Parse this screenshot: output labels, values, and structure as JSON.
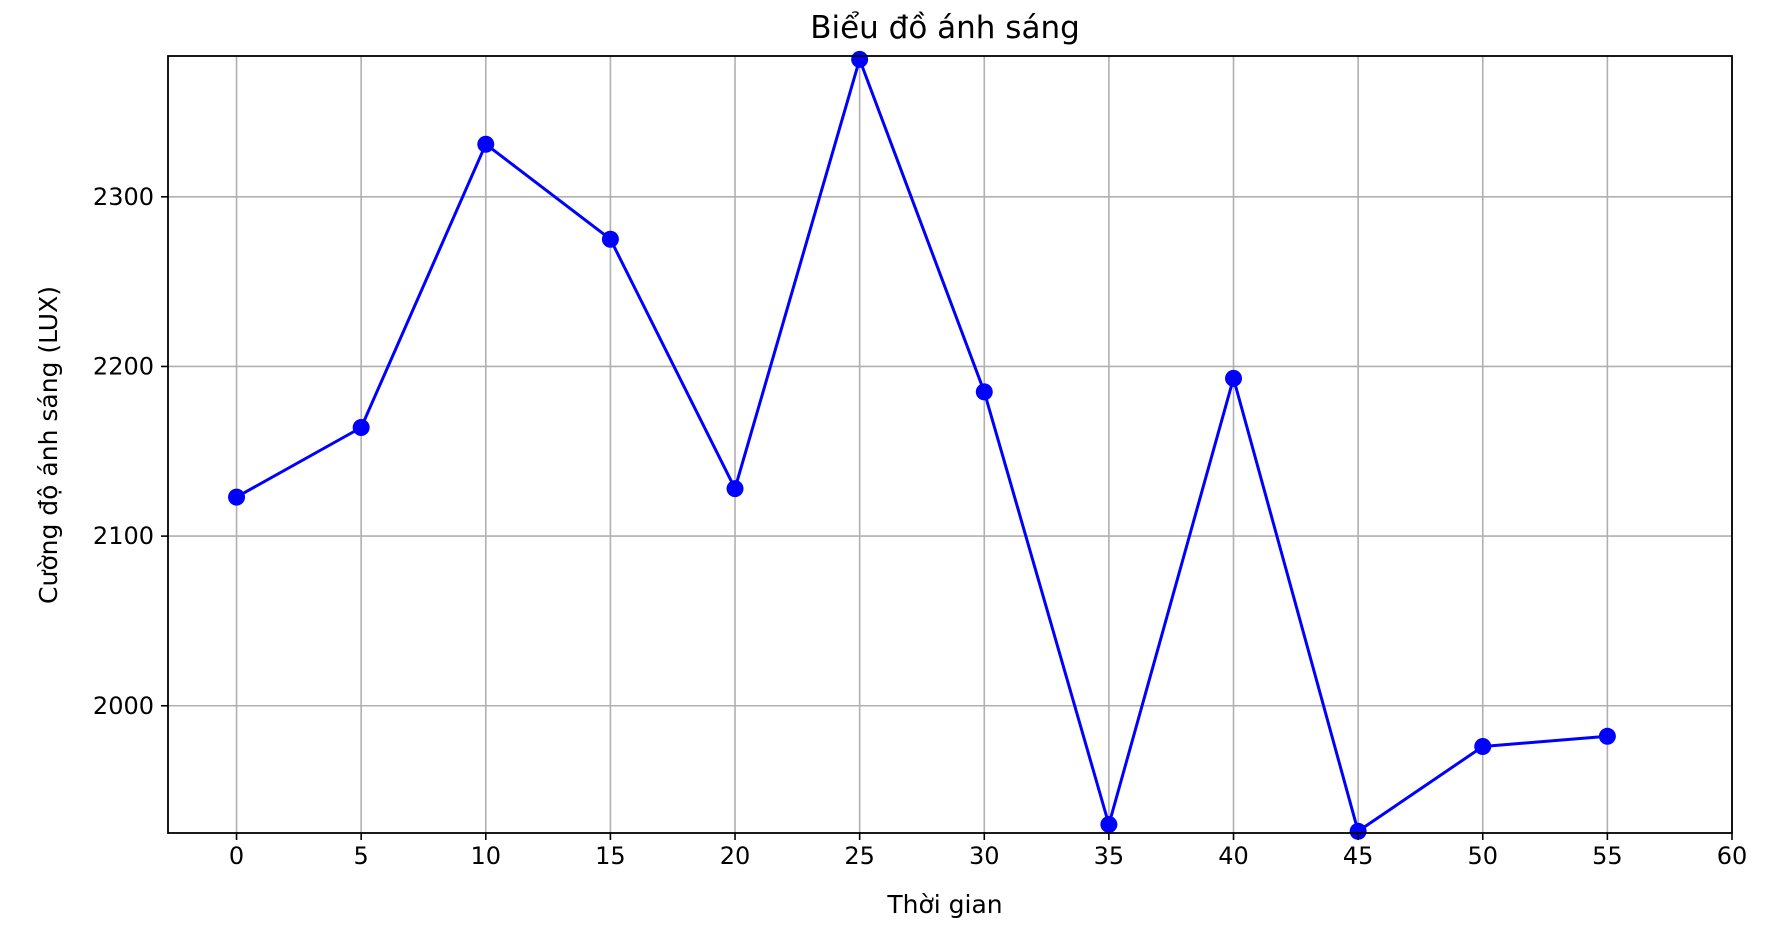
{
  "chart_data": {
    "type": "line",
    "title": "Biểu đồ ánh sáng",
    "xlabel": "Thời gian",
    "ylabel": "Cường độ ánh sáng (LUX)",
    "xlim": [
      -2.75,
      60
    ],
    "ylim": [
      1925,
      2383
    ],
    "xticks": [
      0,
      5,
      10,
      15,
      20,
      25,
      30,
      35,
      40,
      45,
      50,
      55,
      60
    ],
    "yticks": [
      2000,
      2100,
      2200,
      2300
    ],
    "grid": true,
    "series": [
      {
        "color": "#0000ff",
        "marker": "circle",
        "x": [
          0,
          5,
          10,
          15,
          20,
          25,
          30,
          35,
          40,
          45,
          50,
          55
        ],
        "y": [
          2123,
          2164,
          2331,
          2275,
          2128,
          2381,
          2185,
          1930,
          2193,
          1926,
          1976,
          1982
        ]
      }
    ]
  }
}
